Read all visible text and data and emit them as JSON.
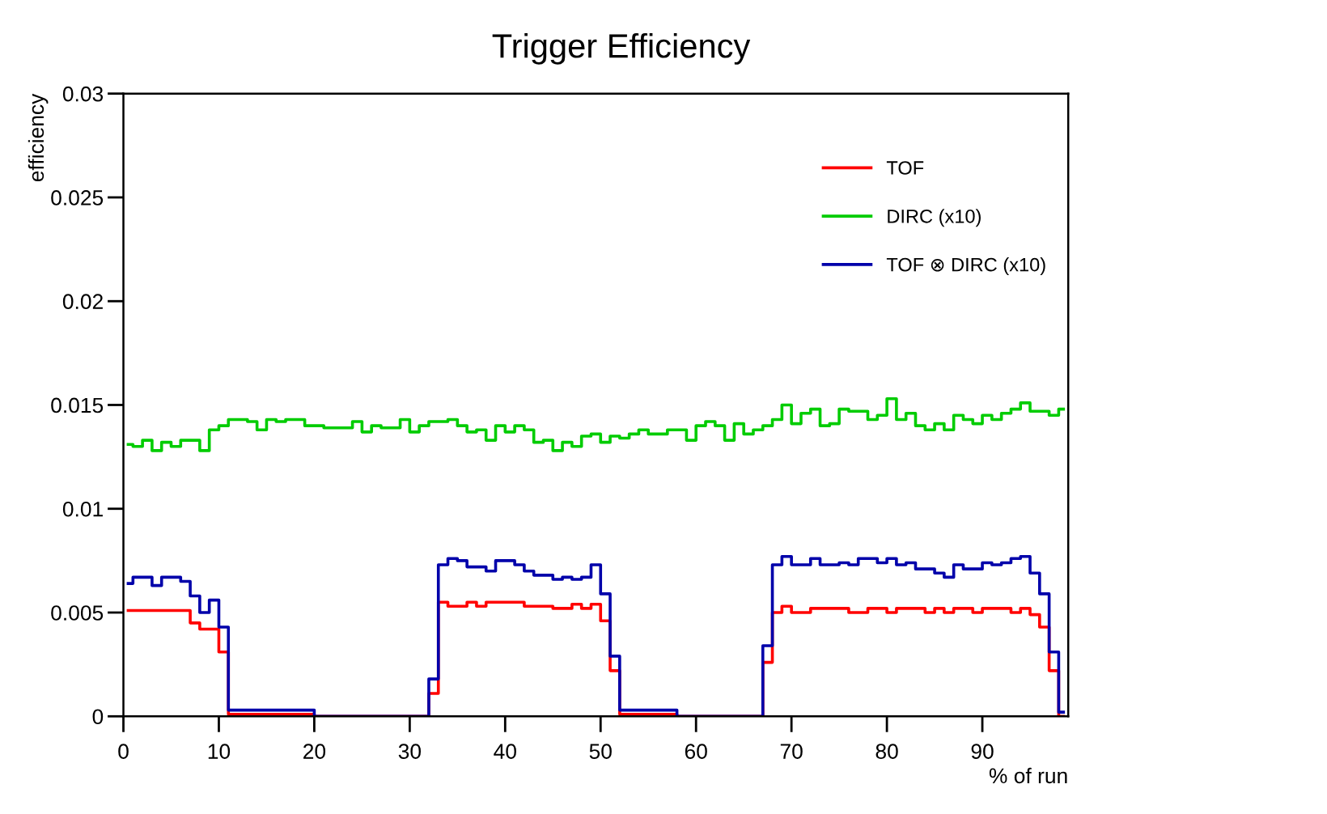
{
  "chart_data": {
    "type": "step",
    "title": "Trigger Efficiency",
    "xlabel": "% of run",
    "ylabel": "efficiency",
    "x": [
      0.5,
      1.5,
      2.5,
      3.5,
      4.5,
      5.5,
      6.5,
      7.5,
      8.5,
      9.5,
      10.5,
      11.5,
      12.5,
      13.5,
      14.5,
      15.5,
      16.5,
      17.5,
      18.5,
      19.5,
      20.5,
      21.5,
      22.5,
      23.5,
      24.5,
      25.5,
      26.5,
      27.5,
      28.5,
      29.5,
      30.5,
      31.5,
      32.5,
      33.5,
      34.5,
      35.5,
      36.5,
      37.5,
      38.5,
      39.5,
      40.5,
      41.5,
      42.5,
      43.5,
      44.5,
      45.5,
      46.5,
      47.5,
      48.5,
      49.5,
      50.5,
      51.5,
      52.5,
      53.5,
      54.5,
      55.5,
      56.5,
      57.5,
      58.5,
      59.5,
      60.5,
      61.5,
      62.5,
      63.5,
      64.5,
      65.5,
      66.5,
      67.5,
      68.5,
      69.5,
      70.5,
      71.5,
      72.5,
      73.5,
      74.5,
      75.5,
      76.5,
      77.5,
      78.5,
      79.5,
      80.5,
      81.5,
      82.5,
      83.5,
      84.5,
      85.5,
      86.5,
      87.5,
      88.5,
      89.5,
      90.5,
      91.5,
      92.5,
      93.5,
      94.5,
      95.5,
      96.5,
      97.5,
      98.5
    ],
    "xlim": [
      0,
      99
    ],
    "ylim": [
      0,
      0.03
    ],
    "xticks": [
      0,
      10,
      20,
      30,
      40,
      50,
      60,
      70,
      80,
      90
    ],
    "yticks": [
      0,
      0.005,
      0.01,
      0.015,
      0.02,
      0.025,
      0.03
    ],
    "grid": false,
    "legend": "top right",
    "series": [
      {
        "name": "TOF",
        "color": "#ff0000",
        "values": [
          0.0051,
          0.0051,
          0.0051,
          0.0051,
          0.0051,
          0.0051,
          0.0051,
          0.0045,
          0.0042,
          0.0042,
          0.0031,
          0.0001,
          0.0001,
          0.0001,
          0.0001,
          0.0001,
          0.0001,
          0.0001,
          0.0001,
          0.0001,
          0,
          0,
          0,
          0,
          0,
          0,
          0,
          0,
          0,
          0,
          0,
          0,
          0.0011,
          0.0055,
          0.0053,
          0.0053,
          0.0055,
          0.0053,
          0.0055,
          0.0055,
          0.0055,
          0.0055,
          0.0053,
          0.0053,
          0.0053,
          0.0052,
          0.0052,
          0.0054,
          0.0052,
          0.0054,
          0.0046,
          0.0022,
          0.0001,
          0.0001,
          0.0001,
          0.0001,
          0.0001,
          0.0001,
          0,
          0,
          0,
          0,
          0,
          0,
          0,
          0,
          0,
          0.0026,
          0.005,
          0.0053,
          0.005,
          0.005,
          0.0052,
          0.0052,
          0.0052,
          0.0052,
          0.005,
          0.005,
          0.0052,
          0.0052,
          0.005,
          0.0052,
          0.0052,
          0.0052,
          0.005,
          0.0052,
          0.005,
          0.0052,
          0.0052,
          0.005,
          0.0052,
          0.0052,
          0.0052,
          0.005,
          0.0052,
          0.0049,
          0.0043,
          0.0022,
          0
        ]
      },
      {
        "name": "DIRC (x10)",
        "color": "#00cc00",
        "values": [
          0.0131,
          0.013,
          0.0133,
          0.0128,
          0.0132,
          0.013,
          0.0133,
          0.0133,
          0.0128,
          0.0138,
          0.014,
          0.0143,
          0.0143,
          0.0142,
          0.0138,
          0.0143,
          0.0142,
          0.0143,
          0.0143,
          0.014,
          0.014,
          0.0139,
          0.0139,
          0.0139,
          0.0142,
          0.0137,
          0.014,
          0.0139,
          0.0139,
          0.0143,
          0.0137,
          0.014,
          0.0142,
          0.0142,
          0.0143,
          0.014,
          0.0137,
          0.0138,
          0.0133,
          0.014,
          0.0137,
          0.014,
          0.0138,
          0.0132,
          0.0133,
          0.0128,
          0.0132,
          0.013,
          0.0135,
          0.0136,
          0.0132,
          0.0135,
          0.0134,
          0.0136,
          0.0138,
          0.0136,
          0.0136,
          0.0138,
          0.0138,
          0.0133,
          0.014,
          0.0142,
          0.014,
          0.0133,
          0.0141,
          0.0136,
          0.0138,
          0.014,
          0.0143,
          0.015,
          0.0141,
          0.0146,
          0.0148,
          0.014,
          0.0141,
          0.0148,
          0.0147,
          0.0147,
          0.0143,
          0.0145,
          0.0153,
          0.0143,
          0.0146,
          0.014,
          0.0138,
          0.0141,
          0.0138,
          0.0145,
          0.0143,
          0.0141,
          0.0145,
          0.0143,
          0.0146,
          0.0148,
          0.0151,
          0.0147,
          0.0147,
          0.0145,
          0.0148
        ]
      },
      {
        "name": "TOF ⊗ DIRC (x10)",
        "color": "#0000aa",
        "values": [
          0.0064,
          0.0067,
          0.0067,
          0.0063,
          0.0067,
          0.0067,
          0.0065,
          0.0058,
          0.005,
          0.0056,
          0.0043,
          0.0003,
          0.0003,
          0.0003,
          0.0003,
          0.0003,
          0.0003,
          0.0003,
          0.0003,
          0.0003,
          0,
          0,
          0,
          0,
          0,
          0,
          0,
          0,
          0,
          0,
          0,
          0,
          0.0018,
          0.0073,
          0.0076,
          0.0075,
          0.0072,
          0.0072,
          0.007,
          0.0075,
          0.0075,
          0.0073,
          0.007,
          0.0068,
          0.0068,
          0.0066,
          0.0067,
          0.0066,
          0.0067,
          0.0073,
          0.0059,
          0.0029,
          0.0003,
          0.0003,
          0.0003,
          0.0003,
          0.0003,
          0.0003,
          0,
          0,
          0,
          0,
          0,
          0,
          0,
          0,
          0,
          0.0034,
          0.0073,
          0.0077,
          0.0073,
          0.0073,
          0.0076,
          0.0073,
          0.0073,
          0.0074,
          0.0073,
          0.0076,
          0.0076,
          0.0074,
          0.0076,
          0.0073,
          0.0074,
          0.0071,
          0.0071,
          0.0069,
          0.0067,
          0.0073,
          0.0071,
          0.0071,
          0.0074,
          0.0073,
          0.0074,
          0.0076,
          0.0077,
          0.0069,
          0.0059,
          0.0031,
          0.0002
        ]
      }
    ]
  }
}
